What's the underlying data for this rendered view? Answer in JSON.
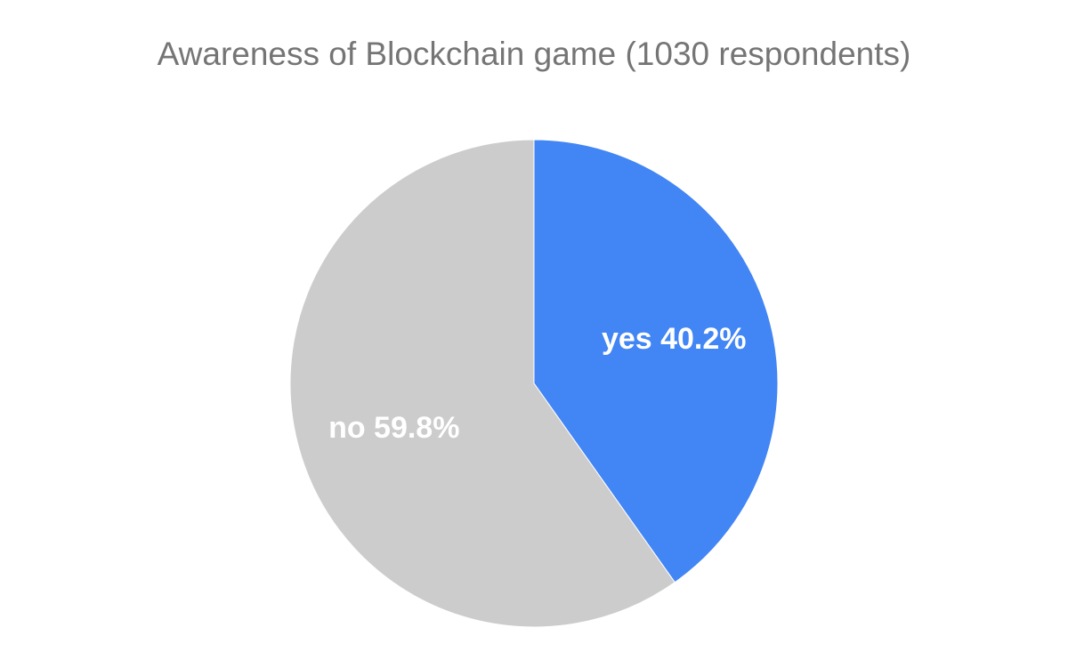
{
  "chart_data": {
    "type": "pie",
    "title": "Awareness of Blockchain game (1030 respondents)",
    "slices": [
      {
        "label": "yes",
        "value": 40.2,
        "display": "yes 40.2%",
        "color": "#4285f4"
      },
      {
        "label": "no",
        "value": 59.8,
        "display": "no 59.8%",
        "color": "#cccccc"
      }
    ],
    "start_angle": "12 o'clock, clockwise"
  }
}
